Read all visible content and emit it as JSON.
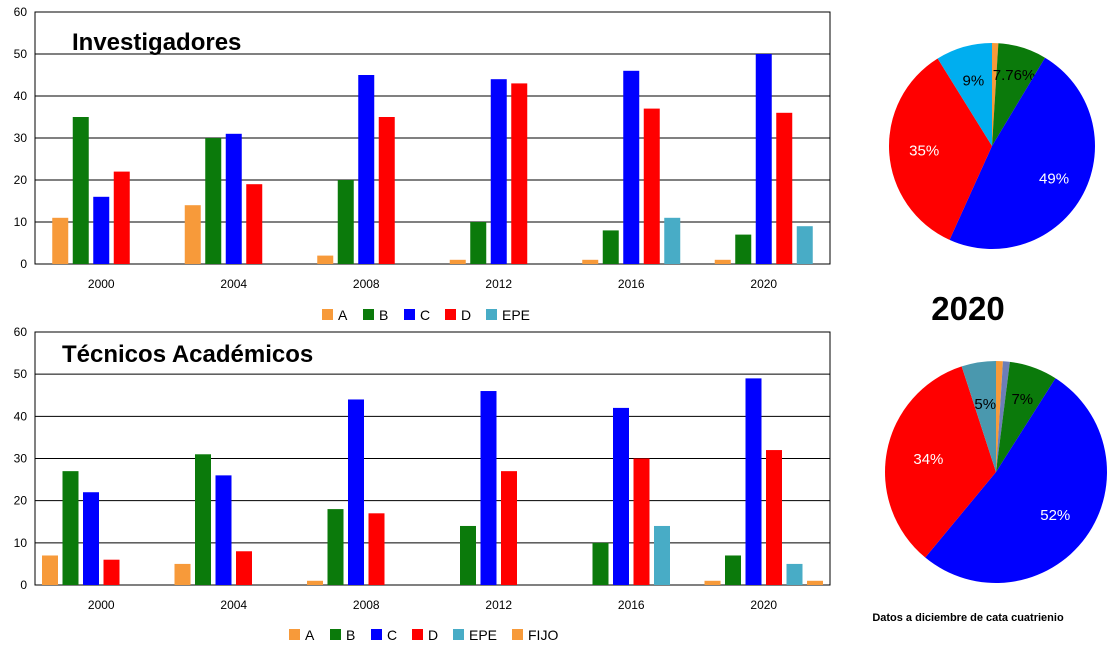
{
  "colors": {
    "A": "#F79A3A",
    "B": "#0B7A0B",
    "C": "#0000FF",
    "D": "#FF0000",
    "EPE": "#48ACC6",
    "FIJO": "#F79A3A",
    "pie_EPE_top": "#00AEEF",
    "pie_EPE_bottom": "#4A98AE",
    "pie_FIJO_bottom": "#6C7EB8"
  },
  "chart_data": [
    {
      "type": "bar",
      "title": "Investigadores",
      "categories": [
        "2000",
        "2004",
        "2008",
        "2012",
        "2016",
        "2020"
      ],
      "ylim": [
        0,
        60
      ],
      "yticks": [
        "0",
        "10",
        "20",
        "30",
        "40",
        "50",
        "60"
      ],
      "grid": true,
      "legend_position": "bottom",
      "legend": [
        "A",
        "B",
        "C",
        "D",
        "EPE"
      ],
      "series": [
        {
          "name": "A",
          "values": [
            11,
            14,
            2,
            1,
            1,
            1
          ]
        },
        {
          "name": "B",
          "values": [
            35,
            30,
            20,
            10,
            8,
            7
          ]
        },
        {
          "name": "C",
          "values": [
            16,
            31,
            45,
            44,
            46,
            50
          ]
        },
        {
          "name": "D",
          "values": [
            22,
            19,
            35,
            43,
            37,
            36
          ]
        },
        {
          "name": "EPE",
          "values": [
            0,
            0,
            0,
            0,
            11,
            9
          ]
        }
      ]
    },
    {
      "type": "bar",
      "title": "Técnicos Académicos",
      "categories": [
        "2000",
        "2004",
        "2008",
        "2012",
        "2016",
        "2020"
      ],
      "ylim": [
        0,
        60
      ],
      "yticks": [
        "0",
        "10",
        "20",
        "30",
        "40",
        "50",
        "60"
      ],
      "grid": true,
      "legend_position": "bottom",
      "legend": [
        "A",
        "B",
        "C",
        "D",
        "EPE",
        "FIJO"
      ],
      "series": [
        {
          "name": "A",
          "values": [
            7,
            5,
            1,
            0,
            0,
            1
          ]
        },
        {
          "name": "B",
          "values": [
            27,
            31,
            18,
            14,
            10,
            7
          ]
        },
        {
          "name": "C",
          "values": [
            22,
            26,
            44,
            46,
            42,
            49
          ]
        },
        {
          "name": "D",
          "values": [
            6,
            8,
            17,
            27,
            30,
            32
          ]
        },
        {
          "name": "EPE",
          "values": [
            0,
            0,
            0,
            0,
            14,
            5
          ]
        },
        {
          "name": "FIJO",
          "values": [
            0,
            0,
            0,
            0,
            0,
            1
          ]
        }
      ]
    },
    {
      "type": "pie",
      "slices": [
        {
          "name": "A",
          "value": 1,
          "label": ""
        },
        {
          "name": "B",
          "value": 7.76,
          "label": "7.76%"
        },
        {
          "name": "C",
          "value": 49,
          "label": "49%"
        },
        {
          "name": "D",
          "value": 35,
          "label": "35%"
        },
        {
          "name": "EPE",
          "value": 9,
          "label": "9%"
        }
      ]
    },
    {
      "type": "pie",
      "slices": [
        {
          "name": "A",
          "value": 1,
          "label": ""
        },
        {
          "name": "FIJO",
          "value": 1,
          "label": ""
        },
        {
          "name": "B",
          "value": 7,
          "label": "7%"
        },
        {
          "name": "C",
          "value": 52,
          "label": "52%"
        },
        {
          "name": "D",
          "value": 34,
          "label": "34%"
        },
        {
          "name": "EPE",
          "value": 5,
          "label": "5%"
        }
      ]
    }
  ],
  "pie_year_label": "2020",
  "footnote": "Datos a diciembre de cata cuatrienio"
}
